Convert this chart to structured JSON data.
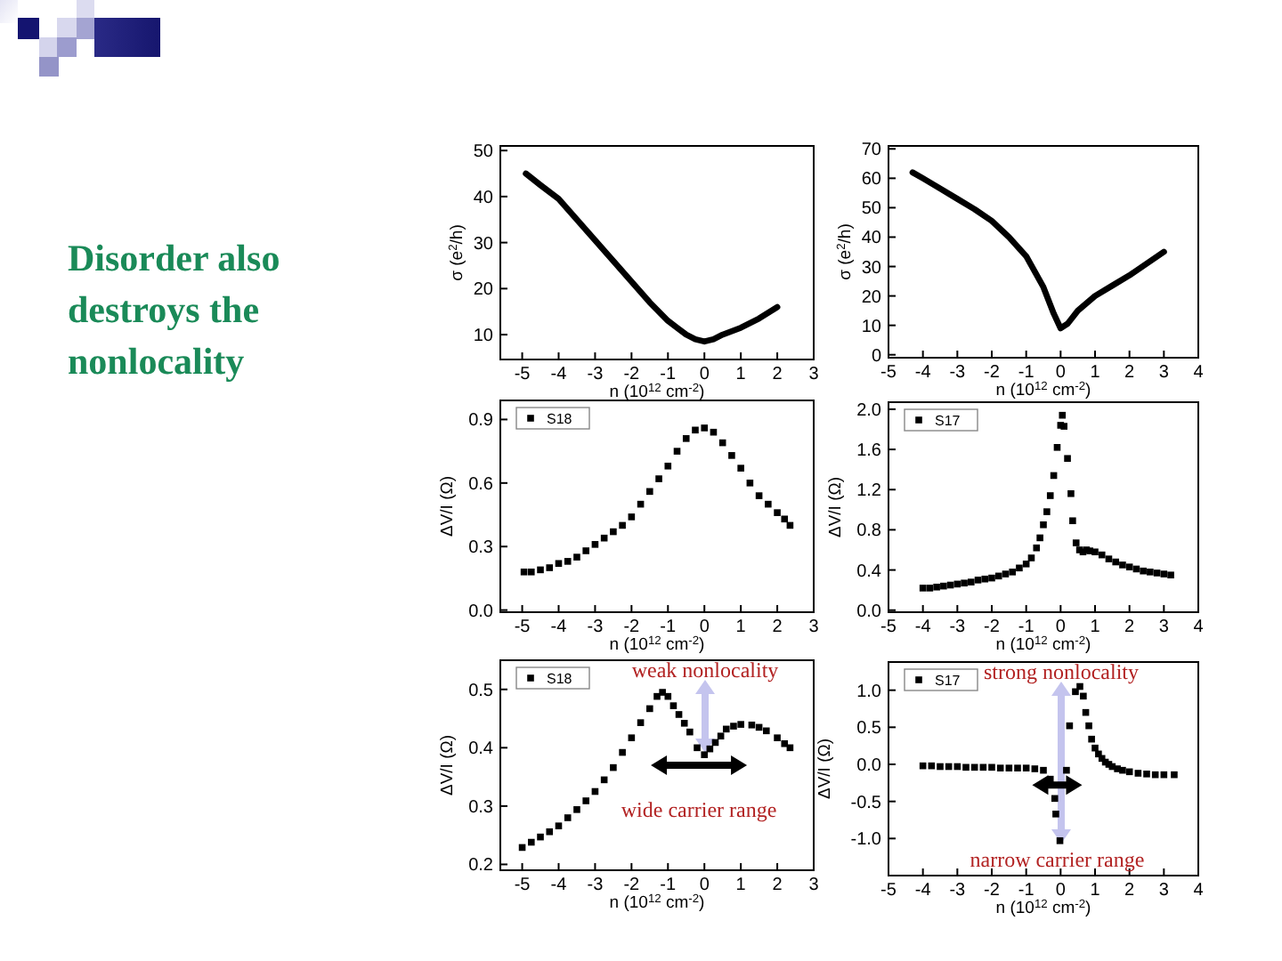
{
  "chart_data": [
    {
      "type": "other",
      "title": "Disorder also destroys the nonlocality",
      "color": "#1a8a58"
    },
    {
      "type": "line",
      "xlabel": "n (10$^{12}$ cm$^{-2}$)",
      "ylabel": "σ (e$^{2}$/h)",
      "color": "#000000",
      "x": [
        -4.9,
        -4.5,
        -4,
        -3.5,
        -3,
        -2.5,
        -2,
        -1.5,
        -1,
        -0.5,
        -0.25,
        0,
        0.25,
        0.5,
        1,
        1.5,
        2
      ],
      "values": [
        45,
        42.5,
        39.5,
        35,
        30.5,
        26,
        21.5,
        17,
        13,
        10,
        9,
        8.5,
        9,
        10,
        11.5,
        13.5,
        16
      ],
      "xlim": [
        -5.6,
        3
      ],
      "ylim": [
        4.6,
        51
      ],
      "xticks": [
        -5,
        -4,
        -3,
        -2,
        -1,
        0,
        1,
        2,
        3
      ],
      "yticks": [
        10,
        20,
        30,
        40,
        50
      ]
    },
    {
      "type": "line",
      "xlabel": "n (10$^{12}$ cm$^{-2}$)",
      "ylabel": "σ (e$^{2}$/h)",
      "color": "#000000",
      "x": [
        -4.3,
        -4,
        -3.5,
        -3,
        -2.5,
        -2,
        -1.5,
        -1,
        -0.5,
        -0.2,
        0,
        0.2,
        0.5,
        1,
        1.5,
        2,
        2.5,
        3
      ],
      "values": [
        62,
        60,
        56.5,
        53,
        49.5,
        45.5,
        40,
        33.5,
        23,
        14,
        9,
        10.5,
        15,
        20,
        23.5,
        27,
        31,
        35
      ],
      "xlim": [
        -5,
        4
      ],
      "ylim": [
        -1,
        71
      ],
      "xticks": [
        -5,
        -4,
        -3,
        -2,
        -1,
        0,
        1,
        2,
        3,
        4
      ],
      "yticks": [
        0,
        10,
        20,
        30,
        40,
        50,
        60,
        70
      ]
    },
    {
      "type": "scatter",
      "xlabel": "n (10$^{12}$ cm$^{-2}$)",
      "ylabel": "ΔV/I (Ω)",
      "marker": "square",
      "legend": "top left",
      "series": [
        {
          "name": "S18",
          "color": "#000000",
          "x": [
            -4.95,
            -4.75,
            -4.5,
            -4.25,
            -4,
            -3.75,
            -3.5,
            -3.25,
            -3,
            -2.75,
            -2.5,
            -2.25,
            -2,
            -1.75,
            -1.5,
            -1.25,
            -1,
            -0.75,
            -0.5,
            -0.25,
            0,
            0.25,
            0.5,
            0.75,
            1,
            1.25,
            1.5,
            1.75,
            2,
            2.2,
            2.35
          ],
          "values": [
            0.18,
            0.18,
            0.19,
            0.2,
            0.22,
            0.23,
            0.25,
            0.28,
            0.31,
            0.34,
            0.37,
            0.4,
            0.44,
            0.5,
            0.56,
            0.62,
            0.68,
            0.75,
            0.81,
            0.85,
            0.86,
            0.84,
            0.79,
            0.73,
            0.67,
            0.6,
            0.54,
            0.5,
            0.46,
            0.43,
            0.4
          ]
        }
      ],
      "xlim": [
        -5.6,
        3
      ],
      "ylim": [
        -0.01,
        0.99
      ],
      "xticks": [
        -5,
        -4,
        -3,
        -2,
        -1,
        0,
        1,
        2,
        3
      ],
      "yticks": [
        {
          "value": 0,
          "label": "0.0"
        },
        0.3,
        0.6,
        0.9
      ]
    },
    {
      "type": "scatter",
      "xlabel": "n (10$^{12}$ cm$^{-2}$)",
      "ylabel": "ΔV/I (Ω)",
      "marker": "square",
      "legend": "top left",
      "series": [
        {
          "name": "S17",
          "color": "#000000",
          "x": [
            -4,
            -3.8,
            -3.6,
            -3.4,
            -3.2,
            -3,
            -2.8,
            -2.6,
            -2.4,
            -2.2,
            -2,
            -1.8,
            -1.6,
            -1.4,
            -1.2,
            -1,
            -0.85,
            -0.7,
            -0.6,
            -0.5,
            -0.4,
            -0.3,
            -0.2,
            -0.1,
            0,
            0.05,
            0.1,
            0.2,
            0.3,
            0.35,
            0.45,
            0.55,
            0.65,
            0.75,
            0.85,
            1,
            1.2,
            1.4,
            1.6,
            1.8,
            2,
            2.2,
            2.4,
            2.6,
            2.8,
            3,
            3.2
          ],
          "values": [
            0.22,
            0.22,
            0.23,
            0.24,
            0.25,
            0.26,
            0.27,
            0.28,
            0.3,
            0.31,
            0.32,
            0.34,
            0.36,
            0.38,
            0.42,
            0.46,
            0.52,
            0.62,
            0.72,
            0.85,
            0.98,
            1.14,
            1.34,
            1.62,
            1.84,
            1.94,
            1.83,
            1.51,
            1.16,
            0.89,
            0.67,
            0.6,
            0.58,
            0.6,
            0.59,
            0.58,
            0.55,
            0.51,
            0.48,
            0.45,
            0.43,
            0.41,
            0.39,
            0.38,
            0.37,
            0.36,
            0.35
          ]
        }
      ],
      "xlim": [
        -5,
        4
      ],
      "ylim": [
        -0.02,
        2.07
      ],
      "xticks": [
        -5,
        -4,
        -3,
        -2,
        -1,
        0,
        1,
        2,
        3,
        4
      ],
      "yticks": [
        {
          "value": 0,
          "label": "0.0"
        },
        0.4,
        0.8,
        1.2,
        1.6,
        {
          "value": 2,
          "label": "2.0"
        }
      ]
    },
    {
      "type": "scatter",
      "xlabel": "n (10$^{12}$ cm$^{-2}$)",
      "ylabel": "ΔV/I (Ω)",
      "marker": "square",
      "legend": "top left",
      "series": [
        {
          "name": "S18",
          "color": "#000000",
          "x": [
            -5,
            -4.75,
            -4.5,
            -4.25,
            -4,
            -3.75,
            -3.5,
            -3.25,
            -3,
            -2.75,
            -2.5,
            -2.25,
            -2,
            -1.75,
            -1.5,
            -1.3,
            -1.15,
            -1,
            -0.85,
            -0.7,
            -0.55,
            -0.4,
            -0.2,
            0,
            0.15,
            0.3,
            0.45,
            0.6,
            0.8,
            1,
            1.3,
            1.5,
            1.7,
            2,
            2.2,
            2.35
          ],
          "values": [
            0.229,
            0.238,
            0.247,
            0.256,
            0.266,
            0.28,
            0.294,
            0.309,
            0.325,
            0.345,
            0.366,
            0.392,
            0.417,
            0.443,
            0.467,
            0.488,
            0.495,
            0.488,
            0.472,
            0.457,
            0.442,
            0.427,
            0.4,
            0.388,
            0.398,
            0.409,
            0.42,
            0.432,
            0.437,
            0.44,
            0.439,
            0.435,
            0.429,
            0.417,
            0.407,
            0.4
          ]
        }
      ],
      "xlim": [
        -5.6,
        3
      ],
      "ylim": [
        0.19,
        0.55
      ],
      "xticks": [
        -5,
        -4,
        -3,
        -2,
        -1,
        0,
        1,
        2,
        3
      ],
      "yticks": [
        0.2,
        0.3,
        0.4,
        0.5
      ],
      "annotations": [
        "weak nonlocality",
        {
          "text": "wide carrier range",
          "x": -0.15,
          "y": 0.37
        }
      ]
    },
    {
      "type": "scatter",
      "xlabel": "n (10$^{12}$ cm$^{-2}$)",
      "ylabel": "ΔV/I (Ω)",
      "marker": "square",
      "legend": "top left",
      "series": [
        {
          "name": "S17",
          "color": "#000000",
          "x": [
            -4,
            -3.75,
            -3.5,
            -3.25,
            -3,
            -2.75,
            -2.5,
            -2.25,
            -2,
            -1.75,
            -1.5,
            -1.25,
            -1,
            -0.75,
            -0.5,
            -0.3,
            -0.17,
            -0.14,
            -0.02,
            0.17,
            0.26,
            0.43,
            0.56,
            0.66,
            0.73,
            0.82,
            0.9,
            1,
            1.1,
            1.2,
            1.3,
            1.4,
            1.5,
            1.65,
            1.8,
            2,
            2.25,
            2.5,
            2.75,
            3,
            3.3
          ],
          "values": [
            -0.02,
            -0.02,
            -0.03,
            -0.03,
            -0.03,
            -0.04,
            -0.04,
            -0.04,
            -0.04,
            -0.05,
            -0.05,
            -0.05,
            -0.05,
            -0.06,
            -0.08,
            -0.2,
            -0.46,
            -0.67,
            -1.03,
            -0.08,
            0.52,
            0.98,
            1.05,
            0.92,
            0.7,
            0.52,
            0.34,
            0.22,
            0.14,
            0.08,
            0.03,
            0,
            -0.03,
            -0.06,
            -0.08,
            -0.1,
            -0.12,
            -0.13,
            -0.14,
            -0.14,
            -0.14
          ]
        }
      ],
      "xlim": [
        -5,
        4
      ],
      "ylim": [
        -1.5,
        1.38
      ],
      "xticks": [
        -5,
        -4,
        -3,
        -2,
        -1,
        0,
        1,
        2,
        3,
        4
      ],
      "yticks": [
        {
          "value": -1,
          "label": "-1.0"
        },
        -0.5,
        {
          "value": 0,
          "label": "0.0"
        },
        0.5,
        {
          "value": 1,
          "label": "1.0"
        }
      ],
      "annotations": [
        "strong nonlocality",
        {
          "text": "narrow carrier range",
          "x": -0.1,
          "y": -0.28
        }
      ]
    }
  ]
}
